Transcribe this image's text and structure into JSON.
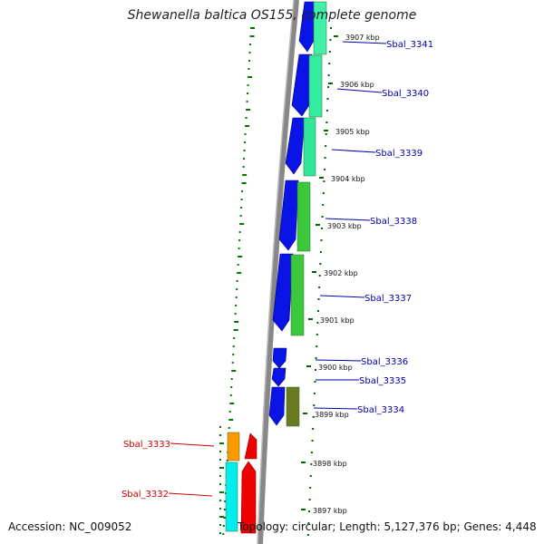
{
  "title": "Shewanella baltica OS155, complete genome",
  "footer": {
    "accession": "Accession: NC_009052",
    "summary": "Topology: circular; Length: 5,127,376 bp; Genes: 4,448"
  },
  "colors": {
    "label_forward": "#0000aa",
    "label_reverse": "#cc0000",
    "backbone": "#888888",
    "gc_dots": "#007700"
  },
  "ticks": [
    {
      "label": "3907 kbp"
    },
    {
      "label": "3906 kbp"
    },
    {
      "label": "3905 kbp"
    },
    {
      "label": "3904 kbp"
    },
    {
      "label": "3903 kbp"
    },
    {
      "label": "3902 kbp"
    },
    {
      "label": "3901 kbp"
    },
    {
      "label": "3900 kbp"
    },
    {
      "label": "3899 kbp"
    },
    {
      "label": "3898 kbp"
    },
    {
      "label": "3897 kbp"
    }
  ],
  "genes": [
    {
      "name": "Sbal_3341",
      "strand": "forward"
    },
    {
      "name": "Sbal_3340",
      "strand": "forward"
    },
    {
      "name": "Sbal_3339",
      "strand": "forward"
    },
    {
      "name": "Sbal_3338",
      "strand": "forward"
    },
    {
      "name": "Sbal_3337",
      "strand": "forward"
    },
    {
      "name": "Sbal_3336",
      "strand": "forward"
    },
    {
      "name": "Sbal_3335",
      "strand": "forward"
    },
    {
      "name": "Sbal_3334",
      "strand": "forward"
    },
    {
      "name": "Sbal_3333",
      "strand": "reverse"
    },
    {
      "name": "Sbal_3332",
      "strand": "reverse"
    }
  ]
}
